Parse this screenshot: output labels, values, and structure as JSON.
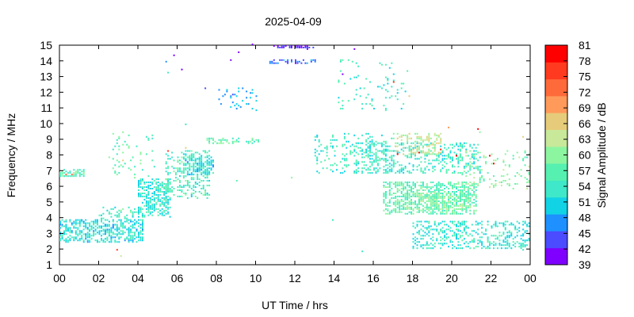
{
  "chart_data": {
    "type": "heatmap",
    "title": "2025-04-09",
    "xlabel": "UT Time / hrs",
    "ylabel": "Frequency / MHz",
    "colorbar_label": "Signal Amplitude / dB",
    "xlim": [
      0,
      24
    ],
    "ylim": [
      1,
      15
    ],
    "x_ticks": [
      "00",
      "02",
      "04",
      "06",
      "08",
      "10",
      "12",
      "14",
      "16",
      "18",
      "20",
      "22",
      "00"
    ],
    "y_ticks": [
      1,
      2,
      3,
      4,
      5,
      6,
      7,
      8,
      9,
      10,
      11,
      12,
      13,
      14,
      15
    ],
    "colorbar_ticks": [
      39,
      42,
      45,
      48,
      51,
      54,
      57,
      60,
      63,
      66,
      69,
      72,
      75,
      78,
      81
    ],
    "colorbar_colors": [
      "#7f00ff",
      "#4b4bff",
      "#1e90ff",
      "#12d2e6",
      "#3ee8c8",
      "#56f0b0",
      "#8cf5a0",
      "#c8e89a",
      "#e6cc7a",
      "#ff9a5a",
      "#ff6a3a",
      "#ff3a1e",
      "#ff0000"
    ],
    "regions": [
      {
        "t0": 0.0,
        "t1": 4.3,
        "f0": 2.4,
        "f1": 3.9,
        "amp": 52,
        "density": 0.55
      },
      {
        "t0": 0.0,
        "t1": 1.3,
        "f0": 6.6,
        "f1": 7.0,
        "amp": 56,
        "density": 0.5
      },
      {
        "t0": 2.0,
        "t1": 4.3,
        "f0": 3.9,
        "f1": 4.6,
        "amp": 55,
        "density": 0.3
      },
      {
        "t0": 2.5,
        "t1": 4.8,
        "f0": 6.5,
        "f1": 9.4,
        "amp": 57,
        "density": 0.07
      },
      {
        "t0": 4.0,
        "t1": 5.6,
        "f0": 4.0,
        "f1": 6.4,
        "amp": 53,
        "density": 0.5
      },
      {
        "t0": 5.4,
        "t1": 7.6,
        "f0": 5.2,
        "f1": 8.2,
        "amp": 55,
        "density": 0.35
      },
      {
        "t0": 6.4,
        "t1": 7.8,
        "f0": 6.7,
        "f1": 7.8,
        "amp": 52,
        "density": 0.5
      },
      {
        "t0": 7.5,
        "t1": 10.2,
        "f0": 8.7,
        "f1": 9.0,
        "amp": 57,
        "density": 0.35
      },
      {
        "t0": 8.0,
        "t1": 10.0,
        "f0": 10.8,
        "f1": 12.2,
        "amp": 48,
        "density": 0.12
      },
      {
        "t0": 10.7,
        "t1": 13.0,
        "f0": 13.8,
        "f1": 14.1,
        "amp": 46,
        "density": 0.5
      },
      {
        "t0": 10.9,
        "t1": 12.9,
        "f0": 14.8,
        "f1": 15.0,
        "amp": 41,
        "density": 0.6
      },
      {
        "t0": 13.0,
        "t1": 17.0,
        "f0": 6.8,
        "f1": 9.3,
        "amp": 54,
        "density": 0.15
      },
      {
        "t0": 14.2,
        "t1": 17.8,
        "f0": 10.8,
        "f1": 14.2,
        "amp": 54,
        "density": 0.05
      },
      {
        "t0": 15.0,
        "t1": 21.5,
        "f0": 6.8,
        "f1": 8.7,
        "amp": 54,
        "density": 0.3
      },
      {
        "t0": 16.5,
        "t1": 21.3,
        "f0": 4.2,
        "f1": 6.2,
        "amp": 57,
        "density": 0.5
      },
      {
        "t0": 17.5,
        "t1": 21.0,
        "f0": 4.5,
        "f1": 5.5,
        "amp": 59,
        "density": 0.45
      },
      {
        "t0": 17.0,
        "t1": 19.5,
        "f0": 8.0,
        "f1": 9.3,
        "amp": 63,
        "density": 0.3
      },
      {
        "t0": 18.0,
        "t1": 24.0,
        "f0": 2.0,
        "f1": 3.8,
        "amp": 53,
        "density": 0.3
      },
      {
        "t0": 20.5,
        "t1": 24.0,
        "f0": 5.8,
        "f1": 8.2,
        "amp": 59,
        "density": 0.15
      }
    ],
    "scatter": [
      {
        "t": 0.3,
        "f": 6.7,
        "amp": 74
      },
      {
        "t": 0.6,
        "f": 6.7,
        "amp": 72
      },
      {
        "t": 2.9,
        "f": 1.9,
        "amp": 75
      },
      {
        "t": 3.1,
        "f": 1.5,
        "amp": 62
      },
      {
        "t": 5.4,
        "f": 13.9,
        "amp": 48
      },
      {
        "t": 5.8,
        "f": 14.3,
        "amp": 42
      },
      {
        "t": 6.2,
        "f": 13.4,
        "amp": 42
      },
      {
        "t": 5.5,
        "f": 13.2,
        "amp": 54
      },
      {
        "t": 6.4,
        "f": 9.9,
        "amp": 54
      },
      {
        "t": 7.4,
        "f": 12.2,
        "amp": 45
      },
      {
        "t": 8.7,
        "f": 14.0,
        "amp": 42
      },
      {
        "t": 9.1,
        "f": 14.5,
        "amp": 42
      },
      {
        "t": 9.8,
        "f": 15.0,
        "amp": 42
      },
      {
        "t": 12.6,
        "f": 14.7,
        "amp": 42
      },
      {
        "t": 15.0,
        "f": 14.7,
        "amp": 42
      },
      {
        "t": 14.4,
        "f": 13.1,
        "amp": 42
      },
      {
        "t": 17.0,
        "f": 12.6,
        "amp": 75
      },
      {
        "t": 17.8,
        "f": 11.7,
        "amp": 66
      },
      {
        "t": 19.8,
        "f": 9.7,
        "amp": 69
      },
      {
        "t": 21.3,
        "f": 9.6,
        "amp": 78
      },
      {
        "t": 21.4,
        "f": 9.4,
        "amp": 60
      },
      {
        "t": 21.9,
        "f": 7.9,
        "amp": 80
      },
      {
        "t": 22.1,
        "f": 7.4,
        "amp": 78
      },
      {
        "t": 23.6,
        "f": 9.1,
        "amp": 66
      },
      {
        "t": 5.5,
        "f": 8.2,
        "amp": 75
      },
      {
        "t": 6.4,
        "f": 8.4,
        "amp": 68
      },
      {
        "t": 17.2,
        "f": 8.0,
        "amp": 78
      },
      {
        "t": 18.3,
        "f": 8.1,
        "amp": 78
      },
      {
        "t": 19.4,
        "f": 8.3,
        "amp": 75
      },
      {
        "t": 20.2,
        "f": 7.9,
        "amp": 78
      },
      {
        "t": 23.6,
        "f": 1.9,
        "amp": 54
      },
      {
        "t": 15.4,
        "f": 1.8,
        "amp": 54
      },
      {
        "t": 13.9,
        "f": 3.8,
        "amp": 54
      },
      {
        "t": 11.8,
        "f": 6.5,
        "amp": 60
      },
      {
        "t": 9.0,
        "f": 6.3,
        "amp": 57
      },
      {
        "t": 3.2,
        "f": 7.6,
        "amp": 66
      }
    ]
  }
}
